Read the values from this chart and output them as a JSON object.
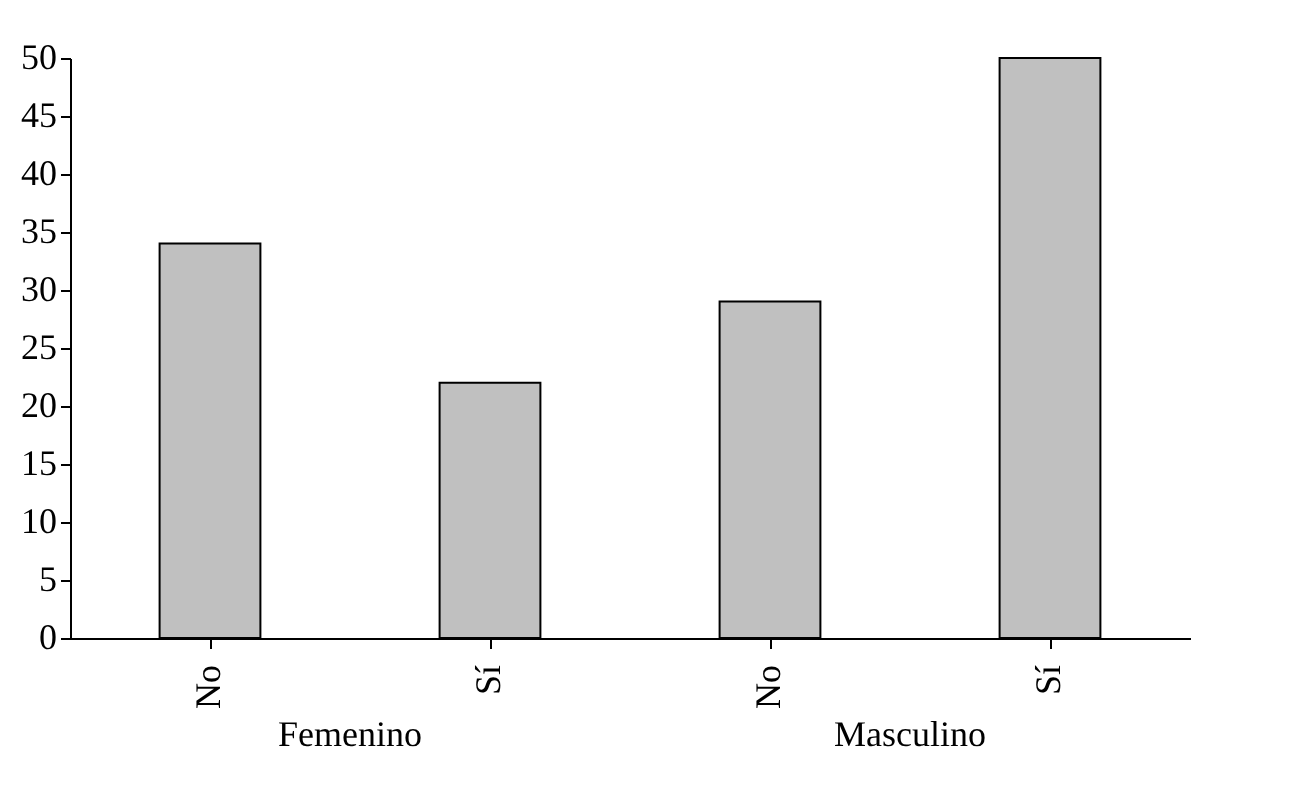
{
  "chart_data": {
    "type": "bar",
    "categories": [
      "No",
      "Sí",
      "No",
      "Sí"
    ],
    "values": [
      34,
      22,
      29,
      50
    ],
    "color": "#c0c0c0",
    "ylim": [
      0,
      50
    ],
    "yticks": [
      0,
      5,
      10,
      15,
      20,
      25,
      30,
      35,
      40,
      45,
      50
    ],
    "grid": false,
    "annotations": [
      "Femenino",
      "Masculino"
    ]
  }
}
